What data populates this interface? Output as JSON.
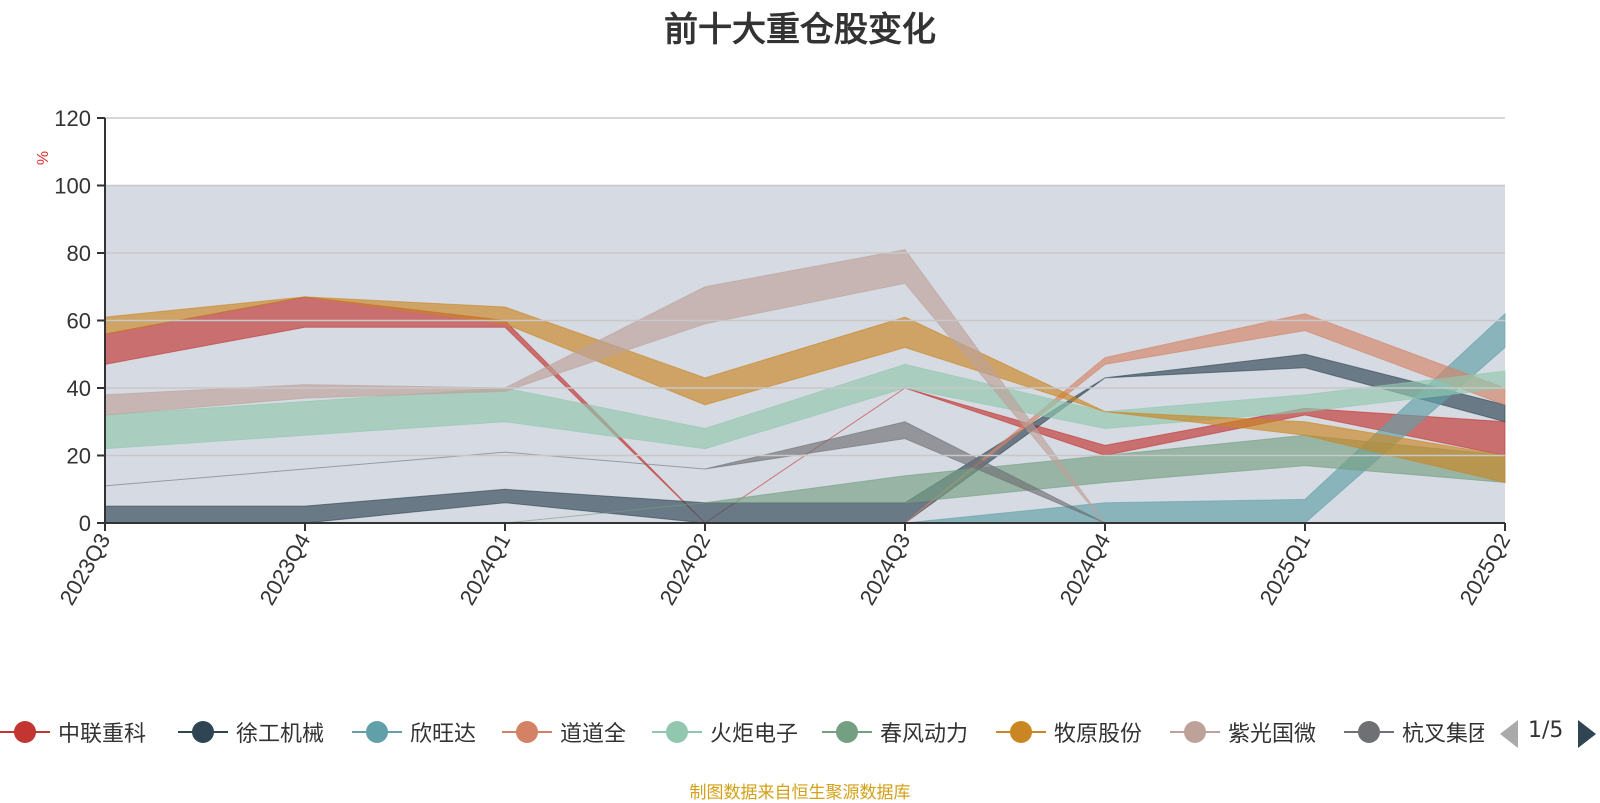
{
  "colors": {
    "background": "#ffffff",
    "plot_band": "#d6dbe3",
    "axis": "#333333",
    "gridline": "#c8c8c8",
    "unit_label": "#e03030",
    "source_note": "#d4a017"
  },
  "pager": {
    "text": "1/5",
    "prev_icon": "triangle-left-icon",
    "next_icon": "triangle-right-icon"
  },
  "source_note": "制图数据来自恒生聚源数据库",
  "chart_data": {
    "type": "area",
    "title": "前十大重仓股变化",
    "ylabel": "%",
    "xlabel": "",
    "ylim": [
      0,
      120
    ],
    "yticks": [
      0,
      20,
      40,
      60,
      80,
      100,
      120
    ],
    "x": [
      "2023Q3",
      "2023Q4",
      "2024Q1",
      "2024Q2",
      "2024Q3",
      "2024Q4",
      "2025Q1",
      "2025Q2"
    ],
    "grid": true,
    "legend_position": "bottom",
    "series": [
      {
        "name": "中联重科",
        "color": "#c23531",
        "lower": [
          47,
          58,
          58,
          0,
          40,
          20,
          32,
          20
        ],
        "upper": [
          56,
          67,
          60,
          0,
          40,
          23,
          34,
          30
        ]
      },
      {
        "name": "徐工机械",
        "color": "#2f4554",
        "lower": [
          0,
          0,
          6,
          0,
          0,
          43,
          46,
          30
        ],
        "upper": [
          5,
          5,
          10,
          6,
          6,
          43,
          50,
          35
        ]
      },
      {
        "name": "欣旺达",
        "color": "#61a0a8",
        "lower": [
          0,
          0,
          0,
          0,
          0,
          0,
          0,
          52
        ],
        "upper": [
          0,
          0,
          0,
          0,
          0,
          6,
          7,
          62
        ]
      },
      {
        "name": "道道全",
        "color": "#d48265",
        "lower": [
          0,
          0,
          0,
          0,
          0,
          47,
          57,
          35
        ],
        "upper": [
          0,
          0,
          0,
          0,
          0,
          49,
          62,
          40
        ]
      },
      {
        "name": "火炬电子",
        "color": "#91c7ae",
        "lower": [
          22,
          26,
          30,
          22,
          40,
          28,
          33,
          40
        ],
        "upper": [
          32,
          36,
          40,
          28,
          47,
          33,
          38,
          45
        ]
      },
      {
        "name": "春风动力",
        "color": "#749f83",
        "lower": [
          0,
          0,
          0,
          6,
          6,
          12,
          17,
          12
        ],
        "upper": [
          0,
          0,
          0,
          6,
          14,
          20,
          26,
          20
        ]
      },
      {
        "name": "牧原股份",
        "color": "#ca8622",
        "lower": [
          56,
          67,
          59,
          35,
          52,
          33,
          26,
          12
        ],
        "upper": [
          61,
          67,
          64,
          43,
          61,
          33,
          30,
          20
        ]
      },
      {
        "name": "紫光国微",
        "color": "#bda29a",
        "lower": [
          32,
          37,
          39,
          59,
          71,
          0,
          0,
          0
        ],
        "upper": [
          38,
          41,
          40,
          70,
          81,
          0,
          0,
          0
        ]
      },
      {
        "name": "杭叉集团",
        "color": "#6e7074",
        "lower": [
          11,
          16,
          21,
          16,
          25,
          0,
          0,
          0
        ],
        "upper": [
          11,
          16,
          21,
          16,
          30,
          0,
          0,
          0
        ]
      }
    ]
  }
}
